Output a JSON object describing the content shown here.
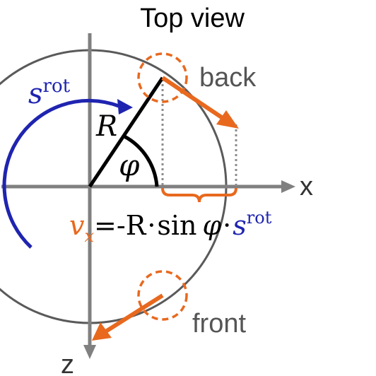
{
  "title": "Top view",
  "axes": {
    "x_label": "x",
    "z_label": "z"
  },
  "labels": {
    "back": "back",
    "front": "front",
    "radius": "R",
    "angle": "φ",
    "rotation_symbol": "s",
    "rotation_superscript": "rot"
  },
  "formula": {
    "velocity_symbol": "v",
    "velocity_subscript": "x",
    "equals_minus": "=-R",
    "dot1": "·",
    "sin_text": "sin",
    "angle": "φ",
    "dot2": "·",
    "rot_symbol": "s",
    "rot_superscript": "rot"
  },
  "colors": {
    "axis": "#808080",
    "circle": "#5a5a5a",
    "radius_line": "#000000",
    "velocity": "#e8691e",
    "rotation": "#1f24b0",
    "dotted": "#8c8c8c",
    "text": "#333333"
  }
}
